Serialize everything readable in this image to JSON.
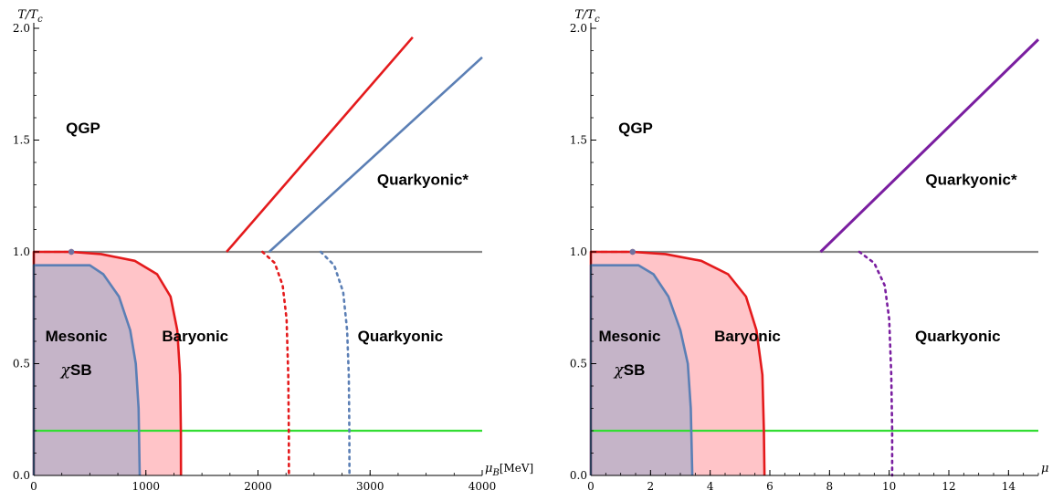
{
  "chart_data": [
    {
      "type": "line",
      "y_label_main": "T/T",
      "y_label_sub": "c",
      "x_label_main": "μ",
      "x_label_sub": "B",
      "x_label_unit": "[MeV]",
      "xlim": [
        0,
        4000
      ],
      "ylim": [
        0,
        2.0
      ],
      "x_ticks": [
        0,
        1000,
        2000,
        3000,
        4000
      ],
      "x_tick_labels": [
        "0",
        "1000",
        "2000",
        "3000",
        "4000"
      ],
      "y_ticks": [
        0,
        0.5,
        1.0,
        1.5,
        2.0
      ],
      "y_tick_labels": [
        "0.0",
        "0.5",
        "1.0",
        "1.5",
        "2.0"
      ],
      "regions": [
        {
          "text": "QGP",
          "x": 440,
          "y": 1.53
        },
        {
          "text": "Quarkyonic*",
          "x": 3470,
          "y": 1.3
        },
        {
          "text": "Mesonic",
          "x": 380,
          "y": 0.6
        },
        {
          "text": "χSB",
          "x": 380,
          "y": 0.45
        },
        {
          "text": "Baryonic",
          "x": 1440,
          "y": 0.6
        },
        {
          "text": "Quarkyonic",
          "x": 3270,
          "y": 0.6
        }
      ],
      "horizontal_lines": [
        {
          "y": 1.0,
          "color": "#888888"
        },
        {
          "y": 0.2,
          "color": "#33dd33"
        }
      ],
      "series": [
        {
          "color": "#e41a1c",
          "style": "solid",
          "points": [
            [
              1720,
              1.0
            ],
            [
              3380,
              1.96
            ]
          ]
        },
        {
          "color": "#5b7fb5",
          "style": "solid",
          "points": [
            [
              2100,
              1.0
            ],
            [
              4000,
              1.87
            ]
          ]
        },
        {
          "color": "#e41a1c",
          "style": "solid",
          "fill": "#ffc4c8",
          "points": [
            [
              0,
              0.0
            ],
            [
              0,
              1.0
            ],
            [
              330,
              1.0
            ],
            [
              600,
              0.99
            ],
            [
              900,
              0.96
            ],
            [
              1100,
              0.9
            ],
            [
              1220,
              0.8
            ],
            [
              1280,
              0.65
            ],
            [
              1305,
              0.45
            ],
            [
              1312,
              0.2
            ],
            [
              1313,
              0.0
            ]
          ]
        },
        {
          "color": "#5b7fb5",
          "style": "solid",
          "fill": "#c5b4c8",
          "points": [
            [
              0,
              0.0
            ],
            [
              0,
              0.94
            ],
            [
              500,
              0.94
            ],
            [
              620,
              0.9
            ],
            [
              760,
              0.8
            ],
            [
              860,
              0.65
            ],
            [
              910,
              0.5
            ],
            [
              935,
              0.3
            ],
            [
              945,
              0.0
            ]
          ]
        },
        {
          "color": "#e41a1c",
          "style": "dashed",
          "points": [
            [
              0,
              1.0
            ],
            [
              330,
              1.0
            ]
          ]
        },
        {
          "color": "#5b7fb5",
          "style": "dashed",
          "points": [
            [
              0,
              0.94
            ],
            [
              500,
              0.94
            ]
          ]
        },
        {
          "color": "#e41a1c",
          "style": "dotted",
          "points": [
            [
              2040,
              1.0
            ],
            [
              2150,
              0.95
            ],
            [
              2220,
              0.85
            ],
            [
              2255,
              0.7
            ],
            [
              2270,
              0.45
            ],
            [
              2275,
              0.2
            ],
            [
              2276,
              0.0
            ]
          ]
        },
        {
          "color": "#5b7fb5",
          "style": "dotted",
          "points": [
            [
              2560,
              1.0
            ],
            [
              2680,
              0.94
            ],
            [
              2760,
              0.82
            ],
            [
              2795,
              0.65
            ],
            [
              2810,
              0.45
            ],
            [
              2815,
              0.2
            ],
            [
              2816,
              0.0
            ]
          ]
        }
      ],
      "markers": [
        {
          "x": 335,
          "y": 1.0,
          "color": "#e41a1c"
        },
        {
          "x": 335,
          "y": 1.0,
          "color": "#5b7fb5"
        }
      ]
    },
    {
      "type": "line",
      "y_label_main": "T/T",
      "y_label_sub": "c",
      "x_label_main": "μ",
      "xlim": [
        0,
        15
      ],
      "ylim": [
        0,
        2.0
      ],
      "x_ticks": [
        0,
        2,
        4,
        6,
        8,
        10,
        12,
        14
      ],
      "x_tick_labels": [
        "0",
        "2",
        "4",
        "6",
        "8",
        "10",
        "12",
        "14"
      ],
      "y_ticks": [
        0,
        0.5,
        1.0,
        1.5,
        2.0
      ],
      "y_tick_labels": [
        "0.0",
        "0.5",
        "1.0",
        "1.5",
        "2.0"
      ],
      "regions": [
        {
          "text": "QGP",
          "x": 1.5,
          "y": 1.53
        },
        {
          "text": "Quarkyonic*",
          "x": 12.75,
          "y": 1.3
        },
        {
          "text": "Mesonic",
          "x": 1.3,
          "y": 0.6
        },
        {
          "text": "χSB",
          "x": 1.3,
          "y": 0.45
        },
        {
          "text": "Baryonic",
          "x": 5.25,
          "y": 0.6
        },
        {
          "text": "Quarkyonic",
          "x": 12.3,
          "y": 0.6
        }
      ],
      "horizontal_lines": [
        {
          "y": 1.0,
          "color": "#888888"
        },
        {
          "y": 0.2,
          "color": "#33dd33"
        }
      ],
      "series": [
        {
          "color": "#7a1ea0",
          "style": "solid",
          "width": 3,
          "points": [
            [
              7.7,
              1.0
            ],
            [
              15,
              1.95
            ]
          ]
        },
        {
          "color": "#e41a1c",
          "style": "solid",
          "fill": "#ffc4c8",
          "points": [
            [
              0,
              0.0
            ],
            [
              0,
              1.0
            ],
            [
              1.4,
              1.0
            ],
            [
              2.5,
              0.99
            ],
            [
              3.7,
              0.96
            ],
            [
              4.6,
              0.9
            ],
            [
              5.2,
              0.8
            ],
            [
              5.55,
              0.65
            ],
            [
              5.75,
              0.45
            ],
            [
              5.8,
              0.2
            ],
            [
              5.82,
              0.0
            ]
          ]
        },
        {
          "color": "#5b7fb5",
          "style": "solid",
          "fill": "#c5b4c8",
          "points": [
            [
              0,
              0.0
            ],
            [
              0,
              0.94
            ],
            [
              1.6,
              0.94
            ],
            [
              2.1,
              0.9
            ],
            [
              2.6,
              0.8
            ],
            [
              3.0,
              0.65
            ],
            [
              3.25,
              0.5
            ],
            [
              3.35,
              0.3
            ],
            [
              3.4,
              0.0
            ]
          ]
        },
        {
          "color": "#e41a1c",
          "style": "dashed",
          "points": [
            [
              0,
              1.0
            ],
            [
              1.3,
              1.0
            ]
          ]
        },
        {
          "color": "#5b7fb5",
          "style": "dashed",
          "points": [
            [
              0,
              0.94
            ],
            [
              1.6,
              0.94
            ]
          ]
        },
        {
          "color": "#7a1ea0",
          "style": "dotted",
          "points": [
            [
              9.0,
              1.0
            ],
            [
              9.5,
              0.95
            ],
            [
              9.85,
              0.85
            ],
            [
              10.0,
              0.7
            ],
            [
              10.07,
              0.45
            ],
            [
              10.1,
              0.2
            ],
            [
              10.1,
              0.0
            ]
          ]
        }
      ],
      "markers": [
        {
          "x": 1.4,
          "y": 1.0,
          "color": "#e41a1c"
        },
        {
          "x": 1.4,
          "y": 1.0,
          "color": "#5b7fb5"
        }
      ]
    }
  ]
}
